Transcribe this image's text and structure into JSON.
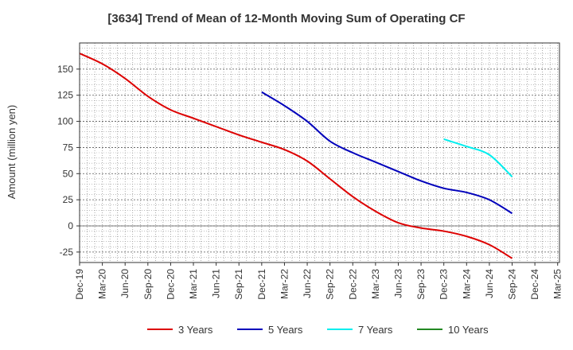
{
  "chart_data": {
    "type": "line",
    "title": "[3634]  Trend of Mean of 12-Month Moving Sum of Operating CF",
    "xlabel": "",
    "ylabel": "Amount (million yen)",
    "ylim": [
      -35,
      175
    ],
    "yticks": [
      150,
      125,
      100,
      75,
      50,
      25,
      0,
      -25
    ],
    "x_ticks": [
      "Dec-19",
      "Mar-20",
      "Jun-20",
      "Sep-20",
      "Dec-20",
      "Mar-21",
      "Jun-21",
      "Sep-21",
      "Dec-21",
      "Mar-22",
      "Jun-22",
      "Sep-22",
      "Dec-22",
      "Mar-23",
      "Jun-23",
      "Sep-23",
      "Dec-23",
      "Mar-24",
      "Jun-24",
      "Sep-24",
      "Dec-24",
      "Mar-25"
    ],
    "grid": true,
    "legend_position": "bottom",
    "series": [
      {
        "name": "3 Years",
        "color": "#dd0000",
        "x": [
          "Dec-19",
          "Mar-20",
          "Jun-20",
          "Sep-20",
          "Dec-20",
          "Mar-21",
          "Jun-21",
          "Sep-21",
          "Dec-21",
          "Mar-22",
          "Jun-22",
          "Sep-22",
          "Dec-22",
          "Mar-23",
          "Jun-23",
          "Sep-23",
          "Dec-23",
          "Mar-24",
          "Jun-24",
          "Sep-24"
        ],
        "values": [
          165,
          155,
          141,
          124,
          111,
          103,
          95,
          87,
          80,
          73,
          62,
          45,
          28,
          14,
          3,
          -2,
          -5,
          -10,
          -18,
          -31
        ]
      },
      {
        "name": "5 Years",
        "color": "#0000bb",
        "x": [
          "Dec-21",
          "Mar-22",
          "Jun-22",
          "Sep-22",
          "Dec-22",
          "Mar-23",
          "Jun-23",
          "Sep-23",
          "Dec-23",
          "Mar-24",
          "Jun-24",
          "Sep-24"
        ],
        "values": [
          128,
          115,
          100,
          81,
          70,
          61,
          52,
          43,
          36,
          32,
          25,
          12
        ]
      },
      {
        "name": "7 Years",
        "color": "#00eeee",
        "x": [
          "Dec-23",
          "Mar-24",
          "Jun-24",
          "Sep-24"
        ],
        "values": [
          83,
          76,
          68,
          47
        ]
      },
      {
        "name": "10 Years",
        "color": "#228822",
        "x": [],
        "values": []
      }
    ]
  }
}
